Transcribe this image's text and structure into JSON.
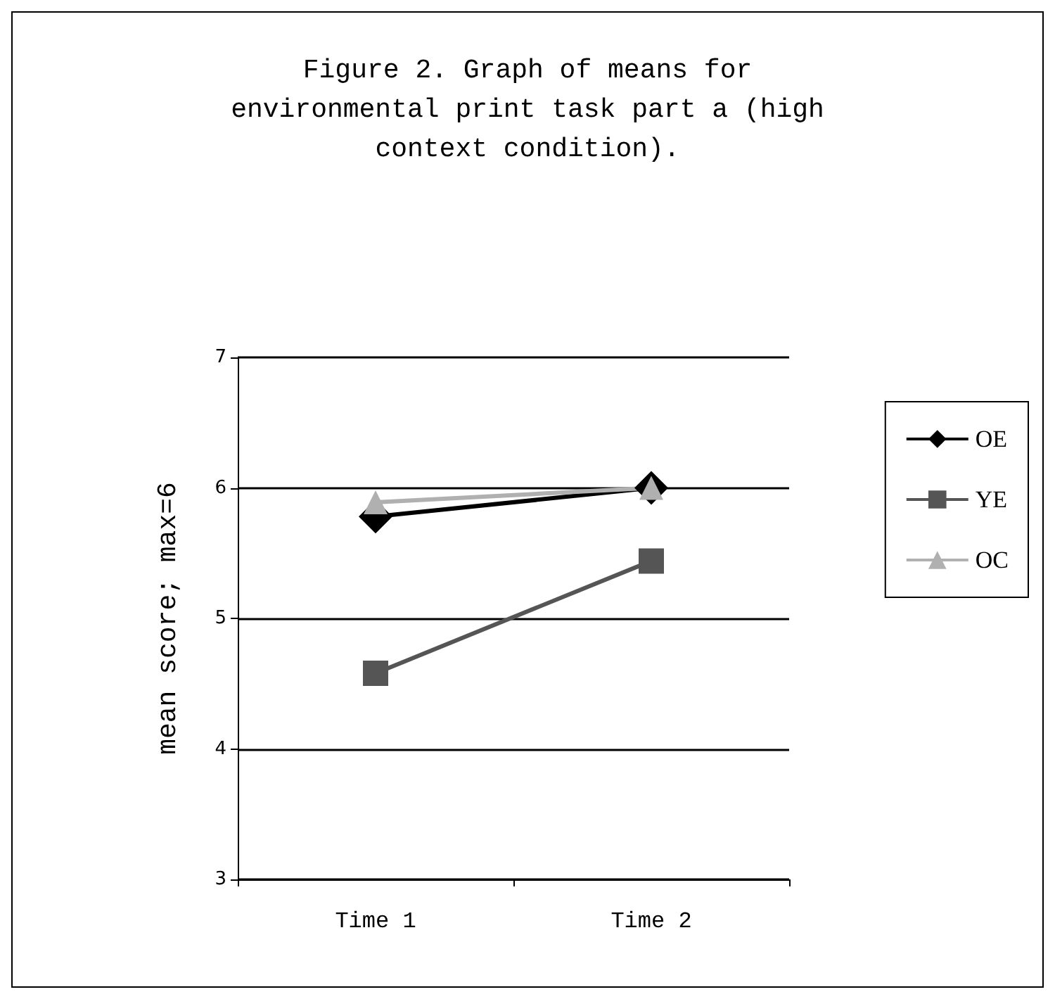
{
  "chart_data": {
    "type": "line",
    "title": "Figure 2. Graph of means for\nenvironmental print task part a (high\ncontext condition).",
    "ylabel": "mean score; max=6",
    "categories": [
      "Time 1",
      "Time 2"
    ],
    "series": [
      {
        "name": "OE",
        "color": "#000000",
        "marker": "diamond",
        "values": [
          5.78,
          6.0
        ]
      },
      {
        "name": "YE",
        "color": "#555555",
        "marker": "square",
        "values": [
          4.58,
          5.44
        ]
      },
      {
        "name": "OC",
        "color": "#b0b0b0",
        "marker": "triangle",
        "values": [
          5.89,
          6.0
        ]
      }
    ],
    "ylim": [
      3,
      7
    ],
    "yticks": [
      3,
      4,
      5,
      6,
      7
    ],
    "grid": "y",
    "legend": "right",
    "line_style": "solid"
  }
}
